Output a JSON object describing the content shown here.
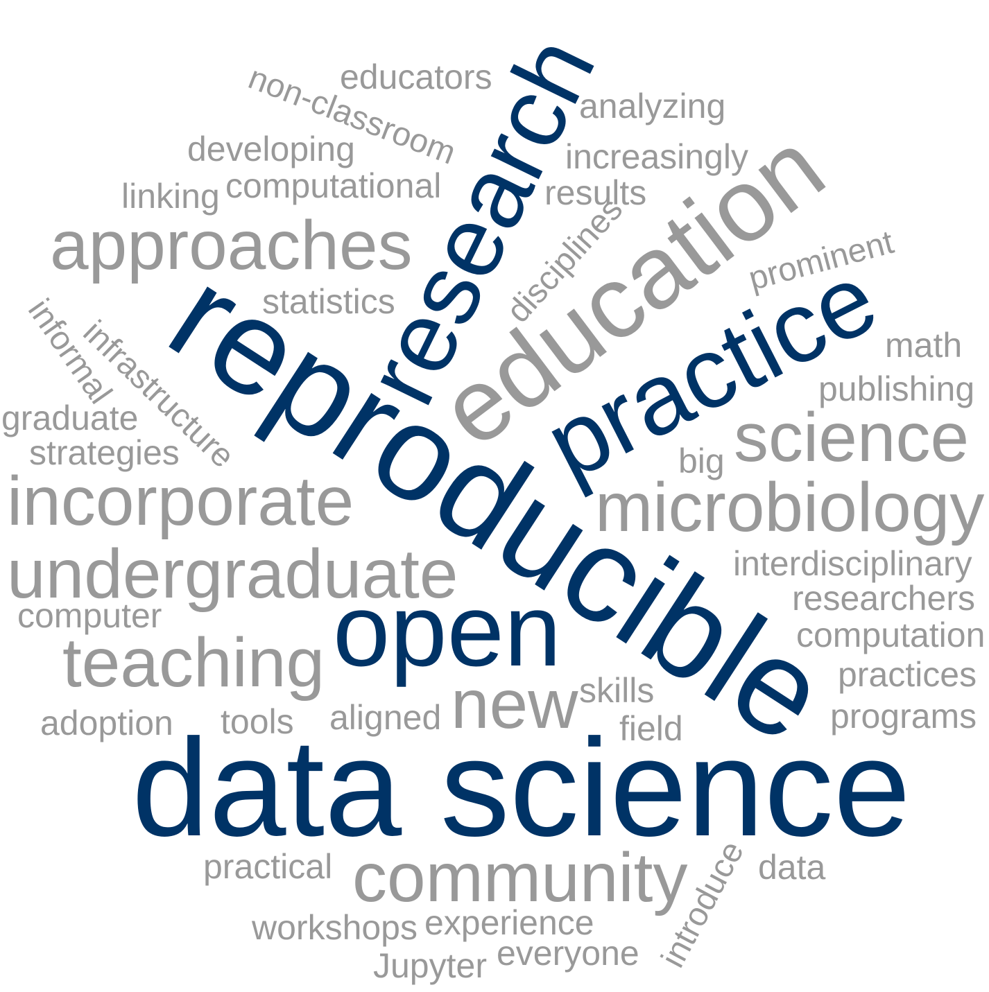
{
  "colors": {
    "primary": "#003366",
    "secondary": "#999999",
    "background": "#ffffff"
  },
  "words": [
    {
      "text": "reproducible",
      "color": "#003366"
    },
    {
      "text": "data science",
      "color": "#003366"
    },
    {
      "text": "research",
      "color": "#003366"
    },
    {
      "text": "practice",
      "color": "#003366"
    },
    {
      "text": "open",
      "color": "#003366"
    },
    {
      "text": "education",
      "color": "#999999"
    },
    {
      "text": "approaches",
      "color": "#999999"
    },
    {
      "text": "incorporate",
      "color": "#999999"
    },
    {
      "text": "undergraduate",
      "color": "#999999"
    },
    {
      "text": "teaching",
      "color": "#999999"
    },
    {
      "text": "science",
      "color": "#999999"
    },
    {
      "text": "microbiology",
      "color": "#999999"
    },
    {
      "text": "community",
      "color": "#999999"
    },
    {
      "text": "new",
      "color": "#999999"
    },
    {
      "text": "educators",
      "color": "#999999"
    },
    {
      "text": "non-classroom",
      "color": "#999999"
    },
    {
      "text": "analyzing",
      "color": "#999999"
    },
    {
      "text": "developing",
      "color": "#999999"
    },
    {
      "text": "increasingly",
      "color": "#999999"
    },
    {
      "text": "computational",
      "color": "#999999"
    },
    {
      "text": "linking",
      "color": "#999999"
    },
    {
      "text": "results",
      "color": "#999999"
    },
    {
      "text": "statistics",
      "color": "#999999"
    },
    {
      "text": "disciplines",
      "color": "#999999"
    },
    {
      "text": "prominent",
      "color": "#999999"
    },
    {
      "text": "informal",
      "color": "#999999"
    },
    {
      "text": "infrastructure",
      "color": "#999999"
    },
    {
      "text": "math",
      "color": "#999999"
    },
    {
      "text": "publishing",
      "color": "#999999"
    },
    {
      "text": "graduate",
      "color": "#999999"
    },
    {
      "text": "strategies",
      "color": "#999999"
    },
    {
      "text": "big",
      "color": "#999999"
    },
    {
      "text": "interdisciplinary",
      "color": "#999999"
    },
    {
      "text": "researchers",
      "color": "#999999"
    },
    {
      "text": "computer",
      "color": "#999999"
    },
    {
      "text": "computation",
      "color": "#999999"
    },
    {
      "text": "practices",
      "color": "#999999"
    },
    {
      "text": "skills",
      "color": "#999999"
    },
    {
      "text": "adoption",
      "color": "#999999"
    },
    {
      "text": "tools",
      "color": "#999999"
    },
    {
      "text": "aligned",
      "color": "#999999"
    },
    {
      "text": "field",
      "color": "#999999"
    },
    {
      "text": "programs",
      "color": "#999999"
    },
    {
      "text": "practical",
      "color": "#999999"
    },
    {
      "text": "data",
      "color": "#999999"
    },
    {
      "text": "introduce",
      "color": "#999999"
    },
    {
      "text": "workshops",
      "color": "#999999"
    },
    {
      "text": "experience",
      "color": "#999999"
    },
    {
      "text": "everyone",
      "color": "#999999"
    },
    {
      "text": "Jupyter",
      "color": "#999999"
    }
  ]
}
